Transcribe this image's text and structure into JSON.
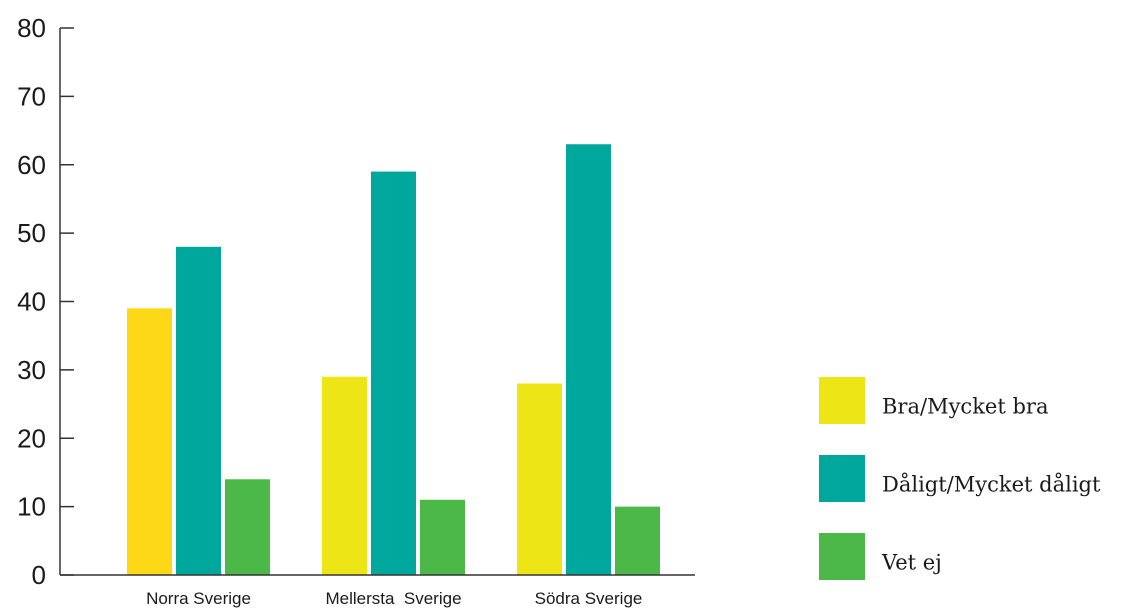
{
  "chart_data": {
    "type": "bar",
    "title": "",
    "xlabel": "",
    "ylabel": "",
    "categories": [
      "Norra Sverige",
      "Mellersta  Sverige",
      "Södra Sverige"
    ],
    "series": [
      {
        "name": "Bra/Mycket bra",
        "values": [
          39,
          29,
          28
        ],
        "color": "#ede516",
        "colors": [
          "#fcd816",
          "#ede516",
          "#ede516"
        ]
      },
      {
        "name": "Dåligt/Mycket dåligt",
        "values": [
          48,
          59,
          63
        ],
        "color": "#00a79d"
      },
      {
        "name": "Vet ej",
        "values": [
          14,
          11,
          10
        ],
        "color": "#4cb848"
      }
    ],
    "ylim": [
      0,
      80
    ],
    "yticks": [
      "0",
      "10",
      "20",
      "30",
      "40",
      "50",
      "60",
      "70",
      "80"
    ],
    "legend_position": "right",
    "grid": false
  }
}
